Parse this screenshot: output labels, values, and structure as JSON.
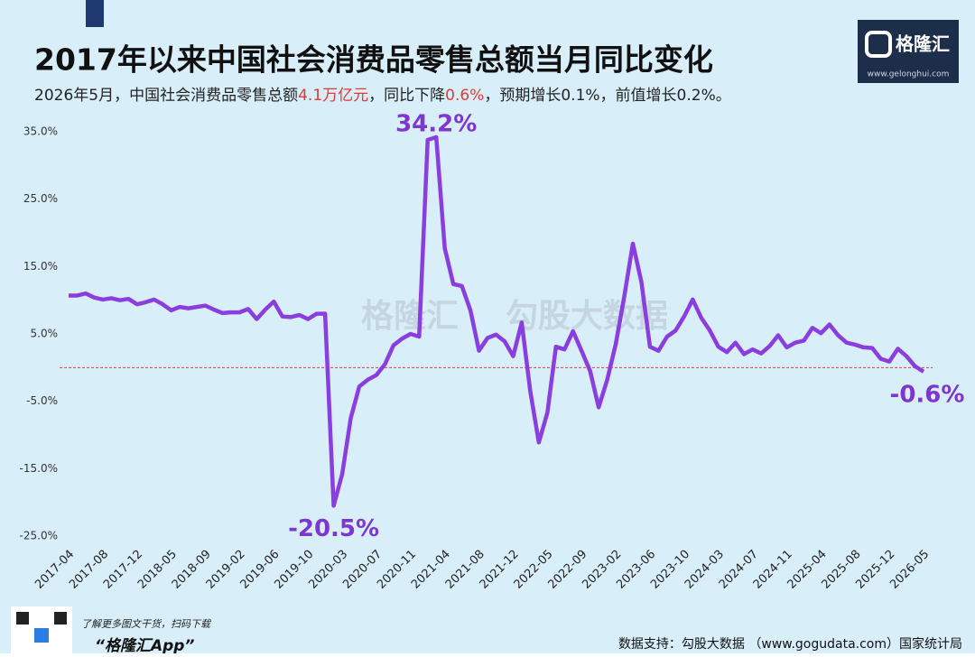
{
  "header": {
    "title": "2017年以来中国社会消费品零售总额当月同比变化",
    "subtitle": [
      {
        "text": "2026年5月，中国社会消费品零售总额"
      },
      {
        "text": "4.1万亿元",
        "color": "#e53935"
      },
      {
        "text": "，同比下降"
      },
      {
        "text": "0.6%",
        "color": "#e53935"
      },
      {
        "text": "，预期增长0.1%，前值增长0.2%。"
      }
    ],
    "logo": {
      "text": "格隆汇",
      "url": "www.gelonghui.com"
    }
  },
  "chart_data": {
    "type": "line",
    "categories": [
      "2017-04",
      null,
      null,
      null,
      "2017-08",
      null,
      null,
      null,
      "2017-12",
      null,
      null,
      null,
      "2018-05",
      null,
      null,
      null,
      "2018-09",
      null,
      null,
      null,
      "2019-02",
      null,
      null,
      null,
      "2019-06",
      null,
      null,
      null,
      "2019-10",
      null,
      null,
      null,
      "2020-03",
      null,
      null,
      null,
      "2020-07",
      null,
      null,
      null,
      "2020-11",
      null,
      null,
      null,
      "2021-04",
      null,
      null,
      null,
      "2021-08",
      null,
      null,
      null,
      "2021-12",
      null,
      null,
      null,
      "2022-05",
      null,
      null,
      null,
      "2022-09",
      null,
      null,
      null,
      "2023-02",
      null,
      null,
      null,
      "2023-06",
      null,
      null,
      null,
      "2023-10",
      null,
      null,
      null,
      "2024-03",
      null,
      null,
      null,
      "2024-07",
      null,
      null,
      null,
      "2024-11",
      null,
      null,
      null,
      "2025-04",
      null,
      null,
      null,
      "2025-08",
      null,
      null,
      null,
      "2025-12",
      null,
      null,
      null,
      "2026-05"
    ],
    "values": [
      10.7,
      10.7,
      11.0,
      10.4,
      10.1,
      10.3,
      10.0,
      10.2,
      9.4,
      9.7,
      10.1,
      9.4,
      8.5,
      9.0,
      8.8,
      9.0,
      9.2,
      8.6,
      8.1,
      8.2,
      8.2,
      8.7,
      7.2,
      8.6,
      9.8,
      7.6,
      7.5,
      7.8,
      7.2,
      8.0,
      8.0,
      -20.5,
      -15.8,
      -7.5,
      -2.8,
      -1.8,
      -1.1,
      0.5,
      3.3,
      4.3,
      5.0,
      4.6,
      33.8,
      34.2,
      17.7,
      12.4,
      12.1,
      8.5,
      2.5,
      4.4,
      4.9,
      3.9,
      1.7,
      6.7,
      -3.5,
      -11.1,
      -6.7,
      3.1,
      2.7,
      5.4,
      2.5,
      -0.5,
      -5.9,
      -1.8,
      3.5,
      10.6,
      18.4,
      12.7,
      3.1,
      2.5,
      4.6,
      5.5,
      7.6,
      10.1,
      7.4,
      5.5,
      3.1,
      2.3,
      3.7,
      2.0,
      2.7,
      2.1,
      3.2,
      4.8,
      3.0,
      3.7,
      4.0,
      5.9,
      5.1,
      6.4,
      4.8,
      3.7,
      3.4,
      3.0,
      2.9,
      1.3,
      0.9,
      2.8,
      1.7,
      0.2,
      -0.6
    ],
    "value_labels": [
      null,
      null,
      null,
      null,
      null,
      null,
      null,
      null,
      null,
      null,
      null,
      null,
      null,
      null,
      null,
      null,
      null,
      null,
      null,
      null,
      null,
      null,
      null,
      null,
      null,
      null,
      null,
      null,
      null,
      null,
      null,
      "-20.5%",
      null,
      null,
      null,
      null,
      null,
      null,
      null,
      null,
      null,
      null,
      null,
      "34.2%",
      null,
      null,
      null,
      null,
      null,
      null,
      null,
      null,
      null,
      null,
      null,
      null,
      null,
      null,
      null,
      null,
      null,
      null,
      null,
      null,
      null,
      null,
      null,
      null,
      null,
      null,
      null,
      null,
      null,
      null,
      null,
      null,
      null,
      null,
      null,
      null,
      null,
      null,
      null,
      null,
      null,
      null,
      null,
      null,
      null,
      null,
      null,
      null,
      null,
      null,
      null,
      null,
      null,
      null,
      null,
      null,
      "-0.6%"
    ],
    "color": "#8a3ee0",
    "label_color": "#7d36cf",
    "ylim": [
      -25,
      35
    ],
    "yticks": [
      {
        "value": -25,
        "label": "-25.0%"
      },
      {
        "value": -15,
        "label": "-15.0%"
      },
      {
        "value": -5,
        "label": "-5.0%"
      },
      {
        "value": 5,
        "label": "5.0%"
      },
      {
        "value": 15,
        "label": "15.0%"
      },
      {
        "value": 25,
        "label": "25.0%"
      },
      {
        "value": 35,
        "label": "35.0%"
      }
    ],
    "grid": false,
    "reference_line": {
      "value": 0,
      "color": "#e04040"
    },
    "watermark": [
      "格隆汇",
      "勾股大数据"
    ]
  },
  "footer": {
    "promo": "了解更多图文干货，扫码下载",
    "app": "“格隆汇App”",
    "source": "数据支持：勾股大数据 （www.gogudata.com）国家统计局"
  }
}
